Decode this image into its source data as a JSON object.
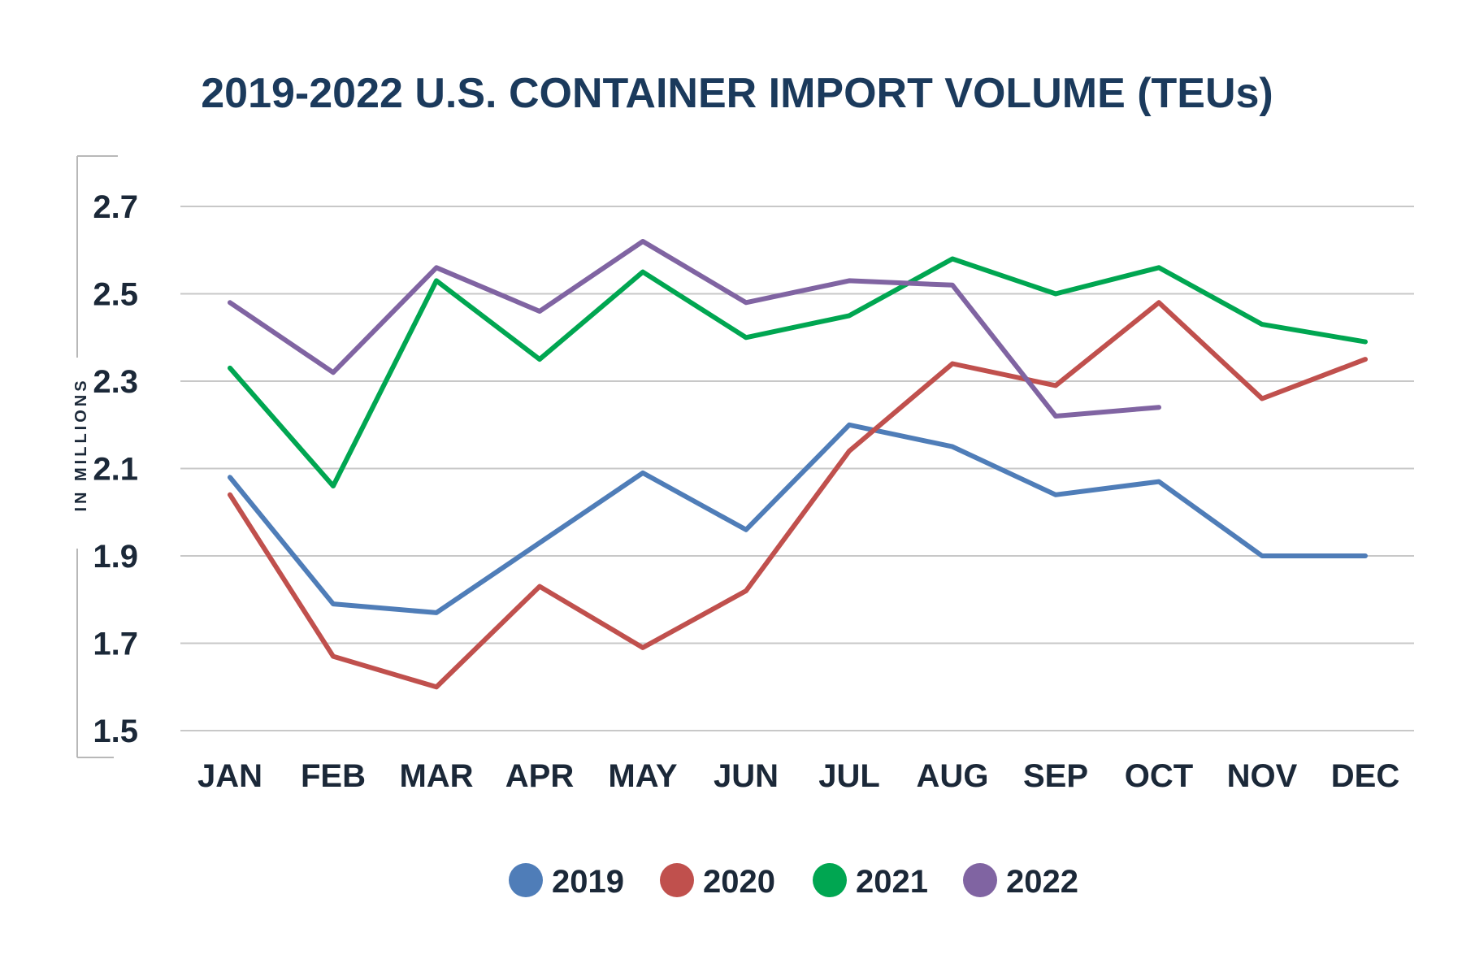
{
  "chart_data": {
    "type": "line",
    "title": "2019-2022 U.S. CONTAINER IMPORT VOLUME (TEUs)",
    "ylabel": "IN MILLIONS",
    "xlabel": "",
    "categories": [
      "JAN",
      "FEB",
      "MAR",
      "APR",
      "MAY",
      "JUN",
      "JUL",
      "AUG",
      "SEP",
      "OCT",
      "NOV",
      "DEC"
    ],
    "yticks": [
      "2.7",
      "2.5",
      "2.3",
      "2.1",
      "1.9",
      "1.7",
      "1.5"
    ],
    "ylim": [
      1.5,
      2.7
    ],
    "grid": true,
    "legend_position": "bottom",
    "series": [
      {
        "name": "2019",
        "color": "#4f7db8",
        "values": [
          2.08,
          1.79,
          1.77,
          1.93,
          2.09,
          1.96,
          2.2,
          2.15,
          2.04,
          2.07,
          1.9,
          1.9
        ]
      },
      {
        "name": "2020",
        "color": "#c0504d",
        "values": [
          2.04,
          1.67,
          1.6,
          1.83,
          1.69,
          1.82,
          2.14,
          2.34,
          2.29,
          2.48,
          2.26,
          2.35
        ]
      },
      {
        "name": "2021",
        "color": "#00a651",
        "values": [
          2.33,
          2.06,
          2.53,
          2.35,
          2.55,
          2.4,
          2.45,
          2.58,
          2.5,
          2.56,
          2.43,
          2.39
        ]
      },
      {
        "name": "2022",
        "color": "#8064a2",
        "values": [
          2.48,
          2.32,
          2.56,
          2.46,
          2.62,
          2.48,
          2.53,
          2.52,
          2.22,
          2.24,
          null,
          null
        ]
      }
    ]
  }
}
